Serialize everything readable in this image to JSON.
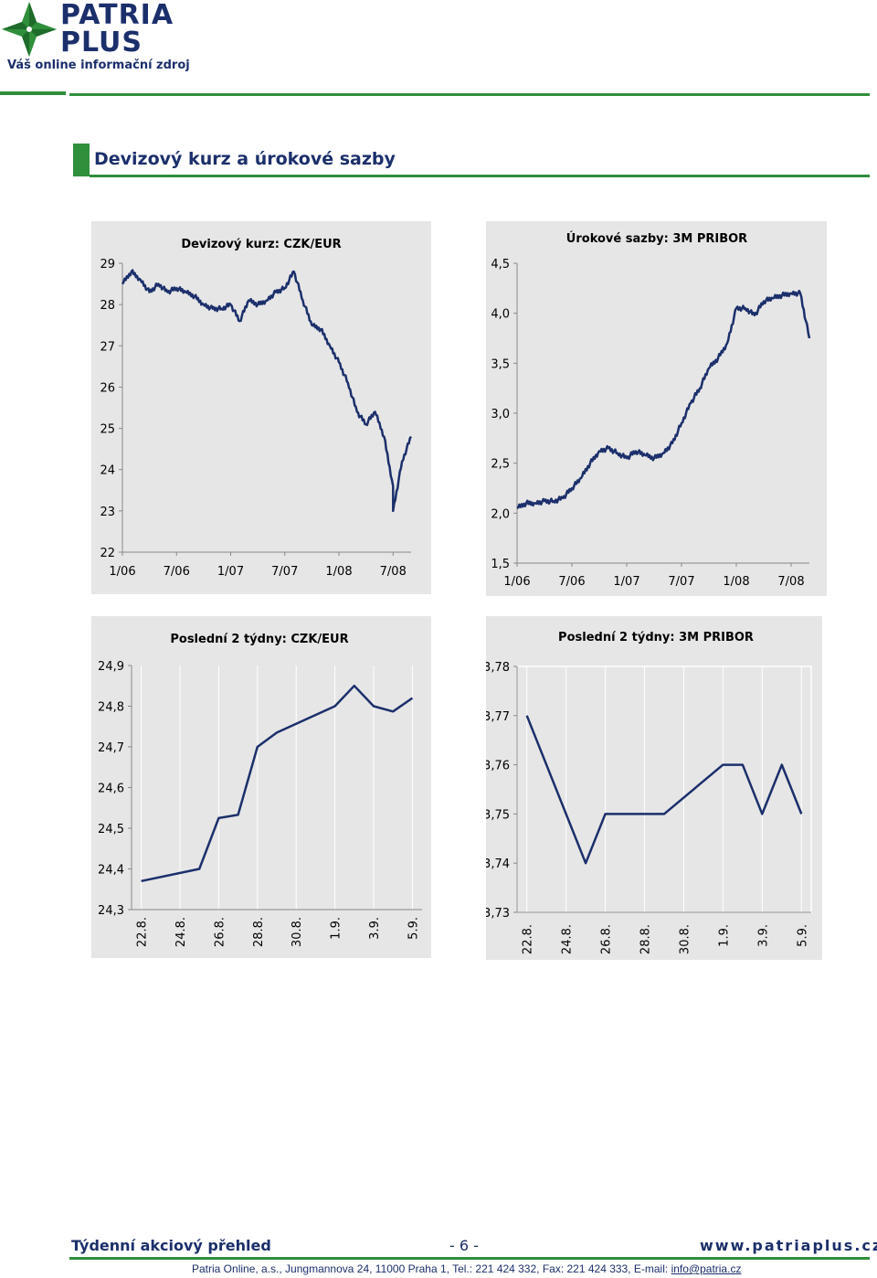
{
  "brand": {
    "name_line1": "PATRIA",
    "name_line2": "PLUS",
    "tagline": "Váš online informační zdroj",
    "color_primary": "#1b2f6b",
    "color_accent": "#2f8f3b",
    "logo_icon": "compass-star-logo"
  },
  "section": {
    "title": "Devizový kurz a úrokové sazby"
  },
  "footer": {
    "left": "Týdenní akciový přehled",
    "page": "- 6 -",
    "right": "www.patriaplus.cz",
    "address": "Patria Online, a.s., Jungmannova 24, 11000 Praha 1, Tel.: 221 424 332, Fax: 221 424 333, E-mail: ",
    "email": "info@patria.cz"
  },
  "chart_data": [
    {
      "type": "line",
      "title": "Devizový kurz: CZK/EUR",
      "x_ticks": [
        "1/06",
        "7/06",
        "1/07",
        "7/07",
        "1/08",
        "7/08"
      ],
      "y_ticks": [
        "29",
        "28",
        "27",
        "26",
        "25",
        "24",
        "23",
        "22"
      ],
      "ylim": [
        22,
        29
      ],
      "xlim": [
        "2006-01",
        "2008-09"
      ],
      "grid": false,
      "series": [
        {
          "x": [
            "2006-01",
            "2006-02",
            "2006-03",
            "2006-04",
            "2006-05",
            "2006-06",
            "2006-07",
            "2006-08",
            "2006-09",
            "2006-10",
            "2006-11",
            "2006-12",
            "2007-01",
            "2007-02",
            "2007-03",
            "2007-04",
            "2007-05",
            "2007-06",
            "2007-07",
            "2007-08",
            "2007-09",
            "2007-10",
            "2007-11",
            "2007-12",
            "2008-01",
            "2008-02",
            "2008-03",
            "2008-04",
            "2008-05",
            "2008-06",
            "2008-07",
            "2008-07",
            "2008-08",
            "2008-09"
          ],
          "values": [
            28.5,
            28.8,
            28.6,
            28.3,
            28.5,
            28.3,
            28.4,
            28.3,
            28.2,
            28.0,
            27.9,
            27.9,
            28.0,
            27.6,
            28.1,
            28.0,
            28.1,
            28.3,
            28.4,
            28.8,
            28.1,
            27.5,
            27.4,
            27.0,
            26.6,
            26.1,
            25.4,
            25.1,
            25.4,
            24.8,
            23.6,
            23.0,
            24.2,
            24.8
          ],
          "color": "#1b2f6b"
        }
      ]
    },
    {
      "type": "line",
      "title": "Úrokové sazby: 3M PRIBOR",
      "x_ticks": [
        "1/06",
        "7/06",
        "1/07",
        "7/07",
        "1/08",
        "7/08"
      ],
      "y_ticks": [
        "4,5",
        "4,0",
        "3,5",
        "3,0",
        "2,5",
        "2,0",
        "1,5"
      ],
      "ylim": [
        1.5,
        4.5
      ],
      "xlim": [
        "2006-01",
        "2008-09"
      ],
      "grid": false,
      "series": [
        {
          "x": [
            "2006-01",
            "2006-02",
            "2006-03",
            "2006-04",
            "2006-05",
            "2006-06",
            "2006-07",
            "2006-08",
            "2006-09",
            "2006-10",
            "2006-11",
            "2006-12",
            "2007-01",
            "2007-02",
            "2007-03",
            "2007-04",
            "2007-05",
            "2007-06",
            "2007-07",
            "2007-08",
            "2007-09",
            "2007-10",
            "2007-11",
            "2007-12",
            "2008-01",
            "2008-02",
            "2008-03",
            "2008-04",
            "2008-05",
            "2008-06",
            "2008-07",
            "2008-08",
            "2008-09"
          ],
          "values": [
            2.05,
            2.1,
            2.1,
            2.12,
            2.12,
            2.15,
            2.25,
            2.35,
            2.5,
            2.62,
            2.65,
            2.6,
            2.55,
            2.62,
            2.58,
            2.55,
            2.6,
            2.7,
            2.9,
            3.1,
            3.25,
            3.45,
            3.55,
            3.7,
            4.05,
            4.05,
            3.98,
            4.12,
            4.15,
            4.18,
            4.2,
            4.2,
            3.75
          ],
          "color": "#1b2f6b"
        }
      ]
    },
    {
      "type": "line",
      "title": "Poslední 2 týdny: CZK/EUR",
      "categories": [
        "22.8.",
        "24.8.",
        "26.8.",
        "28.8.",
        "30.8.",
        "1.9.",
        "3.9.",
        "5.9."
      ],
      "y_ticks": [
        "24,9",
        "24,8",
        "24,7",
        "24,6",
        "24,5",
        "24,4",
        "24,3"
      ],
      "ylim": [
        24.3,
        24.9
      ],
      "grid": true,
      "series": [
        {
          "x": [
            "22.8.",
            "25.8.",
            "26.8.",
            "27.8.",
            "28.8.",
            "29.8.",
            "1.9.",
            "2.9.",
            "3.9.",
            "4.9.",
            "5.9."
          ],
          "values": [
            24.37,
            24.4,
            24.525,
            24.533,
            24.7,
            24.735,
            24.8,
            24.85,
            24.8,
            24.787,
            24.82
          ],
          "color": "#1b2f6b"
        }
      ]
    },
    {
      "type": "line",
      "title": "Poslední 2 týdny: 3M PRIBOR",
      "categories": [
        "22.8.",
        "24.8.",
        "26.8.",
        "28.8.",
        "30.8.",
        "1.9.",
        "3.9.",
        "5.9."
      ],
      "y_ticks": [
        "3,78",
        "3,77",
        "3,76",
        "3,75",
        "3,74",
        "3,73"
      ],
      "ylim": [
        3.73,
        3.78
      ],
      "grid": true,
      "series": [
        {
          "x": [
            "22.8.",
            "25.8.",
            "26.8.",
            "27.8.",
            "28.8.",
            "29.8.",
            "1.9.",
            "2.9.",
            "3.9.",
            "4.9.",
            "5.9."
          ],
          "values": [
            3.77,
            3.74,
            3.75,
            3.75,
            3.75,
            3.75,
            3.76,
            3.76,
            3.75,
            3.76,
            3.75
          ],
          "color": "#1b2f6b"
        }
      ]
    }
  ]
}
